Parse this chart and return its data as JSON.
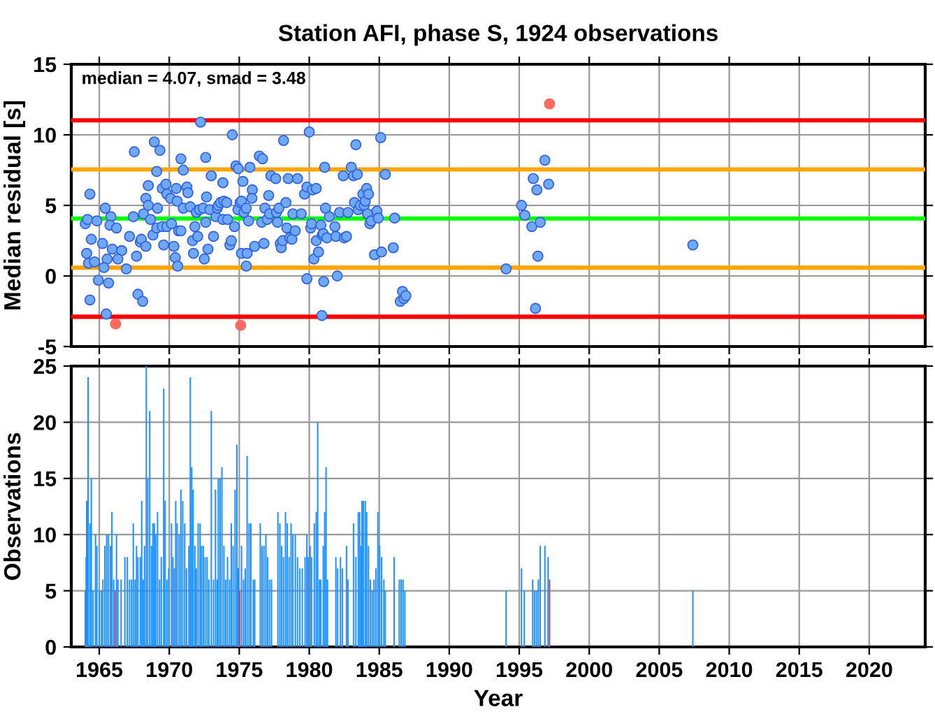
{
  "chart_data": [
    {
      "type": "scatter",
      "title": "Station AFI, phase S, 1924 observations",
      "ylabel": "Median residual [s]",
      "annotations": [
        "median = 4.07, smad = 3.48"
      ],
      "xlim": [
        1963,
        2024
      ],
      "xticks": [
        1965,
        1970,
        1975,
        1980,
        1985,
        1990,
        1995,
        2000,
        2005,
        2010,
        2015,
        2020
      ],
      "ylim": [
        -5,
        15
      ],
      "yticks": [
        -5,
        0,
        5,
        10,
        15
      ],
      "tick_labels": "y",
      "grid": true,
      "marker": "circle",
      "ref_lines": [
        {
          "axis": "y",
          "value": 11.03,
          "color": "#ff0000"
        },
        {
          "axis": "y",
          "value": 7.55,
          "color": "#ffa500"
        },
        {
          "axis": "y",
          "value": 4.07,
          "color": "#00ff00"
        },
        {
          "axis": "y",
          "value": 0.59,
          "color": "#ffa500"
        },
        {
          "axis": "y",
          "value": -2.89,
          "color": "#ff0000"
        }
      ],
      "series": [
        {
          "color": "#6fa8f5",
          "x": [
            1964.0,
            1964.16,
            1964.83,
            1964.33,
            1964.1,
            1964.43,
            1964.23,
            1964.66,
            1964.93,
            1964.33,
            1965.5,
            1965.43,
            1965.83,
            1965.76,
            1966.23,
            1965.23,
            1965.93,
            1965.56,
            1965.66,
            1965.33,
            1966.6,
            1966.33,
            1966.93,
            1967.16,
            1967.43,
            1967.5,
            1967.66,
            1967.76,
            1968.1,
            1967.93,
            1968.0,
            1968.33,
            1968.16,
            1968.33,
            1968.5,
            1968.66,
            1968.5,
            1968.93,
            1969.33,
            1969.1,
            1968.83,
            1969.1,
            1969.16,
            1969.5,
            1969.76,
            1969.83,
            1969.6,
            1969.5,
            1969.83,
            1970.1,
            1970.16,
            1970.33,
            1970.43,
            1970.6,
            1970.66,
            1970.83,
            1970.5,
            1970.56,
            1970.83,
            1971.0,
            1971.0,
            1971.26,
            1971.33,
            1971.5,
            1971.66,
            1971.73,
            1971.83,
            1971.93,
            1972.03,
            1972.16,
            1972.23,
            1972.43,
            1972.5,
            1972.6,
            1972.6,
            1972.76,
            1972.66,
            1972.9,
            1973.0,
            1973.16,
            1973.33,
            1973.43,
            1973.5,
            1973.66,
            1973.83,
            1973.83,
            1973.9,
            1974.1,
            1974.16,
            1974.33,
            1974.5,
            1974.43,
            1974.66,
            1974.76,
            1974.93,
            1974.9,
            1975.06,
            1975.16,
            1975.16,
            1975.26,
            1975.33,
            1975.5,
            1975.56,
            1975.5,
            1975.76,
            1975.66,
            1975.93,
            1975.9,
            1976.1,
            1976.43,
            1976.6,
            1976.66,
            1976.76,
            1976.83,
            1977.0,
            1977.1,
            1977.16,
            1977.26,
            1977.6,
            1977.66,
            1977.73,
            1977.83,
            1977.93,
            1978.0,
            1978.1,
            1978.16,
            1978.33,
            1978.4,
            1978.5,
            1978.6,
            1978.76,
            1978.83,
            1979.0,
            1979.16,
            1979.43,
            1979.66,
            1979.83,
            1979.83,
            1980.0,
            1980.1,
            1980.16,
            1980.23,
            1980.33,
            1980.5,
            1980.5,
            1980.66,
            1980.83,
            1980.93,
            1981.0,
            1981.1,
            1981.16,
            1981.26,
            1981.03,
            1980.9,
            1981.43,
            1981.83,
            1981.9,
            1982.0,
            1982.16,
            1982.43,
            1982.5,
            1982.66,
            1982.76,
            1983.0,
            1983.16,
            1983.23,
            1983.33,
            1983.43,
            1983.5,
            1983.66,
            1983.83,
            1983.93,
            1984.0,
            1984.1,
            1984.23,
            1984.16,
            1984.33,
            1984.43,
            1984.66,
            1984.83,
            1984.93,
            1985.1,
            1985.16,
            1985.43,
            1986.0,
            1986.1,
            1986.5,
            1986.66,
            1986.76,
            1986.9,
            1996.83,
            1996.0,
            1996.26,
            1997.1,
            1995.16,
            1995.4,
            1995.9,
            1996.5,
            1996.33,
            1994.06,
            1996.16,
            2007.4
          ],
          "values": [
            3.7,
            4.0,
            3.9,
            5.8,
            1.6,
            2.6,
            0.9,
            1.0,
            -0.3,
            -1.7,
            -2.7,
            4.8,
            4.2,
            3.6,
            3.4,
            2.3,
            1.9,
            1.2,
            -0.5,
            0.6,
            1.8,
            1.2,
            0.5,
            2.8,
            4.2,
            8.8,
            1.4,
            -1.3,
            -1.8,
            2.4,
            2.6,
            2.1,
            4.4,
            5.5,
            5.0,
            4.0,
            6.4,
            9.5,
            8.9,
            7.4,
            2.9,
            3.4,
            4.8,
            6.2,
            6.5,
            5.8,
            2.2,
            3.5,
            3.5,
            5.5,
            3.7,
            2.1,
            1.3,
            0.7,
            3.2,
            3.2,
            6.2,
            5.3,
            8.3,
            7.5,
            4.8,
            6.3,
            5.9,
            4.9,
            2.5,
            1.6,
            3.5,
            4.5,
            2.8,
            4.7,
            10.9,
            4.8,
            1.2,
            8.4,
            3.8,
            1.9,
            5.6,
            4.7,
            7.1,
            2.8,
            4.2,
            4.8,
            5.0,
            5.2,
            4.0,
            6.6,
            5.3,
            5.2,
            4.0,
            2.2,
            10.0,
            2.5,
            3.5,
            7.8,
            7.6,
            4.7,
            5.2,
            1.6,
            5.3,
            6.7,
            4.5,
            0.7,
            1.6,
            4.8,
            7.7,
            3.9,
            6.1,
            5.5,
            2.1,
            8.5,
            3.8,
            8.3,
            2.3,
            4.8,
            4.0,
            5.7,
            4.4,
            7.1,
            6.9,
            4.5,
            3.8,
            4.8,
            2.3,
            2.0,
            2.5,
            9.6,
            5.2,
            3.4,
            6.9,
            2.7,
            2.6,
            4.4,
            3.2,
            6.9,
            4.4,
            5.8,
            6.3,
            -0.2,
            10.2,
            3.4,
            3.7,
            6.1,
            1.2,
            6.2,
            2.5,
            1.7,
            3.6,
            2.9,
            3.0,
            7.7,
            4.8,
            2.7,
            -0.4,
            -2.8,
            4.2,
            3.5,
            2.8,
            0.0,
            4.5,
            7.1,
            2.7,
            2.8,
            4.5,
            7.7,
            7.1,
            5.2,
            9.3,
            7.2,
            4.7,
            5.0,
            5.8,
            5.0,
            5.3,
            6.2,
            5.8,
            4.4,
            3.7,
            3.9,
            1.5,
            4.6,
            4.1,
            9.8,
            1.7,
            7.2,
            2.0,
            4.1,
            -1.8,
            -1.1,
            -1.6,
            -1.4,
            8.2,
            6.9,
            6.1,
            6.5,
            5.0,
            4.3,
            3.5,
            3.8,
            1.4,
            0.5,
            -2.3,
            2.2
          ]
        },
        {
          "color": "#ff6a60",
          "x": [
            1966.16,
            1975.1,
            1997.16
          ],
          "values": [
            -3.4,
            -3.5,
            12.2
          ]
        }
      ]
    },
    {
      "type": "bar",
      "xlabel": "Year",
      "ylabel": "Observations",
      "xlim": [
        1963,
        2024
      ],
      "xticks": [
        1965,
        1970,
        1975,
        1980,
        1985,
        1990,
        1995,
        2000,
        2005,
        2010,
        2015,
        2020
      ],
      "ylim": [
        0,
        25
      ],
      "yticks": [
        0,
        5,
        10,
        15,
        20,
        25
      ],
      "grid": true,
      "series": [
        {
          "color": "#1e90ff",
          "x": [
            1964.0,
            1964.06,
            1964.1,
            1964.2,
            1964.33,
            1964.43,
            1964.56,
            1964.73,
            1964.83,
            1965.0,
            1965.16,
            1965.26,
            1965.4,
            1965.53,
            1965.66,
            1965.8,
            1965.9,
            1966.03,
            1966.23,
            1966.33,
            1966.56,
            1966.83,
            1967.0,
            1967.16,
            1967.3,
            1967.43,
            1967.56,
            1967.66,
            1967.76,
            1967.93,
            1968.03,
            1968.13,
            1968.23,
            1968.36,
            1968.46,
            1968.6,
            1968.73,
            1968.83,
            1968.93,
            1969.03,
            1969.16,
            1969.3,
            1969.43,
            1969.6,
            1969.7,
            1969.83,
            1969.96,
            1970.16,
            1970.26,
            1970.36,
            1970.46,
            1970.56,
            1970.7,
            1970.83,
            1970.96,
            1971.1,
            1971.23,
            1971.4,
            1971.5,
            1971.6,
            1971.7,
            1971.83,
            1971.93,
            1972.06,
            1972.2,
            1972.3,
            1972.43,
            1972.56,
            1972.7,
            1972.83,
            1973.0,
            1973.16,
            1973.3,
            1973.43,
            1973.5,
            1973.63,
            1973.76,
            1973.9,
            1974.03,
            1974.16,
            1974.3,
            1974.43,
            1974.56,
            1974.7,
            1974.83,
            1974.93,
            1975.16,
            1975.3,
            1975.43,
            1975.56,
            1975.7,
            1975.83,
            1976.0,
            1976.1,
            1976.5,
            1976.63,
            1976.76,
            1976.9,
            1977.03,
            1977.16,
            1977.3,
            1977.76,
            1977.9,
            1978.03,
            1978.16,
            1978.3,
            1978.43,
            1978.56,
            1978.7,
            1978.83,
            1979.0,
            1979.16,
            1979.33,
            1979.5,
            1979.7,
            1979.83,
            1979.93,
            1980.06,
            1980.16,
            1980.36,
            1980.5,
            1980.6,
            1980.73,
            1980.83,
            1981.0,
            1981.1,
            1981.2,
            1981.3,
            1981.9,
            1982.03,
            1982.23,
            1982.36,
            1982.66,
            1982.76,
            1983.16,
            1983.33,
            1983.5,
            1983.6,
            1983.7,
            1983.76,
            1983.86,
            1984.0,
            1984.1,
            1984.23,
            1984.36,
            1984.5,
            1984.63,
            1984.76,
            1984.9,
            1985.03,
            1985.16,
            1985.33,
            1985.43,
            1986.06,
            1986.43,
            1986.56,
            1986.7,
            1986.83,
            1994.06,
            1995.16,
            1995.36,
            1995.96,
            1996.1,
            1996.23,
            1996.36,
            1996.5,
            1996.83,
            1997.06,
            2007.4
          ],
          "values": [
            5,
            8,
            13,
            24,
            11,
            15,
            5,
            10,
            9,
            5,
            5,
            6,
            9,
            10,
            10,
            9,
            12,
            6,
            10,
            6,
            6,
            8,
            8,
            6,
            6,
            11,
            6,
            9,
            8,
            8,
            13,
            6,
            9,
            25,
            15,
            21,
            9,
            11,
            11,
            10,
            12,
            6,
            8,
            23,
            13,
            6,
            7,
            11,
            8,
            7,
            13,
            11,
            10,
            14,
            13,
            11,
            7,
            9,
            24,
            16,
            14,
            9,
            7,
            11,
            11,
            9,
            9,
            8,
            8,
            6,
            21,
            6,
            14,
            6,
            15,
            15,
            16,
            9,
            6,
            8,
            6,
            11,
            9,
            14,
            18,
            7,
            9,
            6,
            7,
            17,
            11,
            11,
            6,
            6,
            11,
            9,
            9,
            10,
            8,
            6,
            6,
            12,
            11,
            9,
            8,
            12,
            11,
            8,
            11,
            10,
            10,
            8,
            7,
            7,
            8,
            10,
            8,
            9,
            8,
            11,
            12,
            20,
            6,
            6,
            9,
            12,
            16,
            6,
            8,
            7,
            8,
            7,
            9,
            6,
            11,
            8,
            12,
            12,
            9,
            13,
            13,
            13,
            12,
            9,
            6,
            5,
            6,
            7,
            12,
            9,
            8,
            6,
            5,
            8,
            6,
            6,
            6,
            5,
            5,
            7,
            5,
            6,
            5,
            5,
            6,
            9,
            9,
            8,
            5
          ]
        },
        {
          "color": "#e0403a",
          "x": [
            1966.13,
            1975.03,
            1997.16
          ],
          "values": [
            5,
            5,
            6
          ]
        }
      ]
    }
  ]
}
